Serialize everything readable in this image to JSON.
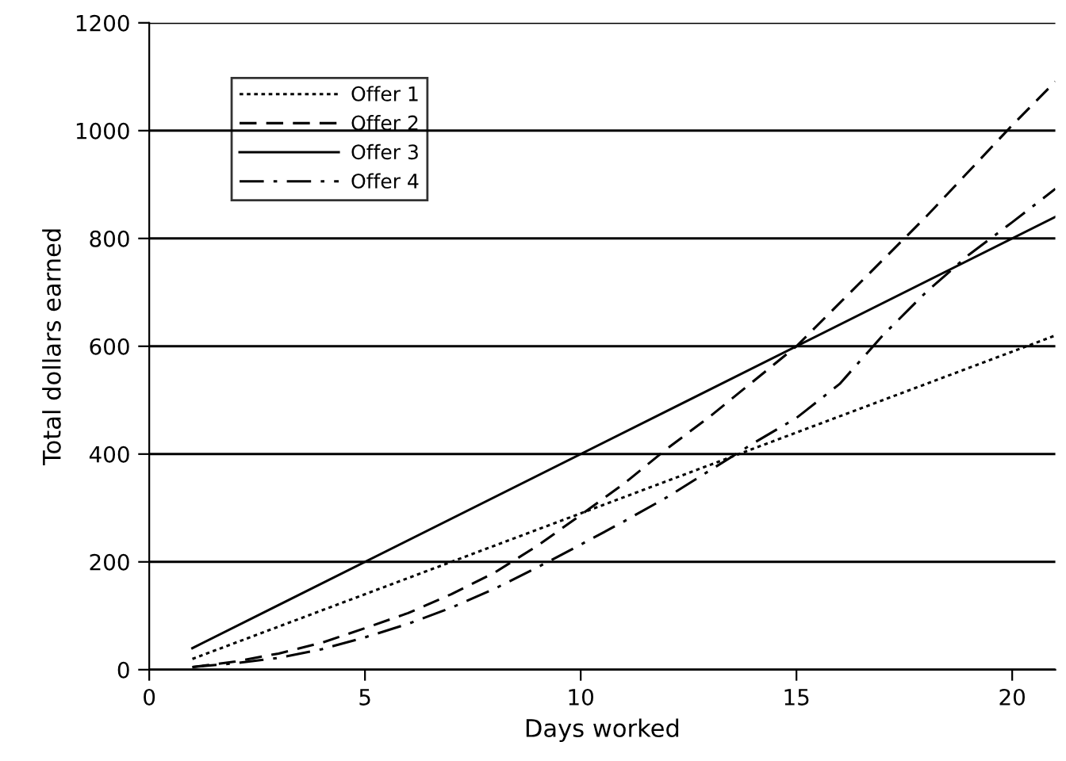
{
  "chart_data": {
    "type": "line",
    "xlabel": "Days worked",
    "ylabel": "Total dollars earned",
    "xlim": [
      0,
      21
    ],
    "xticks": [
      0,
      5,
      10,
      15,
      20
    ],
    "ylim": [
      0,
      1200
    ],
    "yticks": [
      0,
      200,
      400,
      600,
      800,
      1000,
      1200
    ],
    "grid": "y",
    "legend": "top left",
    "series": [
      {
        "name": "Offer 1",
        "color": "#000000",
        "line_style": "dotted",
        "x": [
          1,
          21
        ],
        "values": [
          20,
          620
        ]
      },
      {
        "name": "Offer 2",
        "color": "#000000",
        "line_style": "dashed",
        "x": [
          1,
          2,
          3,
          4,
          5,
          6,
          7,
          8,
          9,
          10,
          11,
          12,
          13,
          14,
          15,
          16,
          17,
          18,
          19,
          20,
          21
        ],
        "values": [
          5,
          15,
          30,
          50,
          77,
          105,
          140,
          180,
          230,
          287,
          345,
          410,
          470,
          535,
          600,
          680,
          760,
          840,
          925,
          1010,
          1091
        ]
      },
      {
        "name": "Offer 3",
        "color": "#000000",
        "line_style": "solid",
        "x": [
          1,
          21
        ],
        "values": [
          40,
          840
        ]
      },
      {
        "name": "Offer 4",
        "color": "#000000",
        "line_style": "dashdot",
        "x": [
          1,
          2,
          3,
          4,
          5,
          6,
          7,
          8,
          9,
          10,
          11,
          12,
          13,
          14,
          15,
          16,
          17,
          18,
          19,
          20,
          21
        ],
        "values": [
          5,
          12,
          22,
          38,
          60,
          85,
          115,
          150,
          190,
          232,
          275,
          320,
          370,
          420,
          467,
          530,
          620,
          700,
          770,
          830,
          892
        ]
      }
    ]
  }
}
